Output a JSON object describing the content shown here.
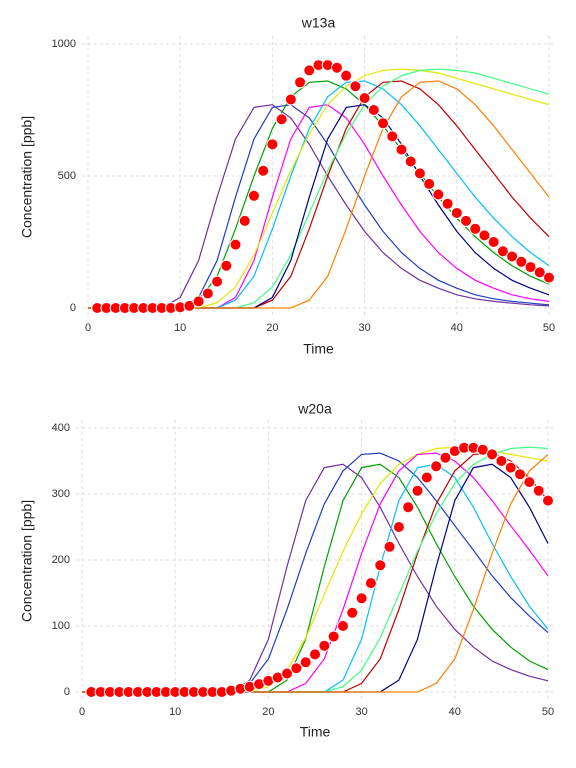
{
  "chart_data": [
    {
      "type": "line",
      "title": "w13a",
      "xlabel": "Time",
      "ylabel": "Concentration [ppb]",
      "xlim": [
        0,
        50
      ],
      "ylim": [
        0,
        1000
      ],
      "xticks": [
        0,
        10,
        20,
        30,
        40,
        50
      ],
      "yticks": [
        0,
        500,
        1000
      ],
      "grid": true,
      "x": [
        0,
        2,
        4,
        6,
        8,
        10,
        12,
        14,
        16,
        18,
        20,
        22,
        24,
        26,
        28,
        30,
        32,
        34,
        36,
        38,
        40,
        42,
        44,
        46,
        48,
        50
      ],
      "series": [
        {
          "color": "#7030a0",
          "values": [
            0,
            0,
            0,
            0,
            0,
            40,
            180,
            420,
            640,
            760,
            770,
            720,
            620,
            500,
            390,
            290,
            210,
            150,
            105,
            75,
            50,
            35,
            25,
            18,
            12,
            8
          ]
        },
        {
          "color": "#1f3fbf",
          "values": [
            0,
            0,
            0,
            0,
            0,
            0,
            40,
            180,
            420,
            640,
            760,
            770,
            720,
            620,
            500,
            390,
            290,
            210,
            150,
            105,
            75,
            50,
            35,
            25,
            18,
            12
          ]
        },
        {
          "color": "#00a000",
          "values": [
            0,
            0,
            0,
            0,
            0,
            0,
            30,
            120,
            300,
            500,
            680,
            800,
            855,
            860,
            830,
            770,
            690,
            600,
            510,
            420,
            340,
            270,
            210,
            160,
            120,
            90
          ]
        },
        {
          "color": "#ff00ff",
          "values": [
            0,
            0,
            0,
            0,
            0,
            0,
            0,
            0,
            40,
            180,
            420,
            640,
            760,
            770,
            720,
            620,
            500,
            390,
            290,
            210,
            150,
            105,
            75,
            50,
            35,
            25
          ]
        },
        {
          "color": "#00c0ff",
          "values": [
            0,
            0,
            0,
            0,
            0,
            0,
            0,
            0,
            30,
            120,
            300,
            500,
            680,
            800,
            855,
            860,
            830,
            770,
            690,
            600,
            510,
            420,
            340,
            270,
            210,
            160
          ]
        },
        {
          "color": "#e6e600",
          "values": [
            0,
            0,
            0,
            0,
            0,
            0,
            0,
            20,
            80,
            200,
            360,
            520,
            660,
            770,
            840,
            880,
            900,
            905,
            900,
            890,
            870,
            850,
            830,
            810,
            790,
            770
          ]
        },
        {
          "color": "#c00000",
          "values": [
            0,
            0,
            0,
            0,
            0,
            0,
            0,
            0,
            0,
            0,
            30,
            120,
            300,
            500,
            680,
            800,
            855,
            860,
            830,
            770,
            690,
            600,
            510,
            420,
            340,
            270
          ]
        },
        {
          "color": "#40ff80",
          "values": [
            0,
            0,
            0,
            0,
            0,
            0,
            0,
            0,
            0,
            20,
            80,
            200,
            360,
            520,
            660,
            770,
            840,
            880,
            900,
            905,
            900,
            890,
            870,
            850,
            830,
            810
          ]
        },
        {
          "color": "#000080",
          "values": [
            0,
            0,
            0,
            0,
            0,
            0,
            0,
            0,
            0,
            0,
            40,
            180,
            420,
            640,
            760,
            770,
            720,
            620,
            500,
            390,
            290,
            210,
            150,
            105,
            75,
            50
          ]
        },
        {
          "color": "#ff8000",
          "values": [
            0,
            0,
            0,
            0,
            0,
            0,
            0,
            0,
            0,
            0,
            0,
            0,
            30,
            120,
            300,
            500,
            680,
            800,
            855,
            860,
            830,
            770,
            690,
            600,
            510,
            420
          ]
        }
      ],
      "points": {
        "color": "#ff0000",
        "x": [
          1,
          2,
          3,
          4,
          5,
          6,
          7,
          8,
          9,
          10,
          11,
          12,
          13,
          14,
          15,
          16,
          17,
          18,
          19,
          20,
          21,
          22,
          23,
          24,
          25,
          26,
          27,
          28,
          29,
          30,
          31,
          32,
          33,
          34,
          35,
          36,
          37,
          38,
          39,
          40,
          41,
          42,
          43,
          44,
          45,
          46,
          47,
          48,
          49,
          50
        ],
        "values": [
          0,
          0,
          0,
          0,
          0,
          0,
          0,
          0,
          0,
          3,
          8,
          25,
          55,
          100,
          160,
          240,
          330,
          425,
          520,
          620,
          715,
          790,
          855,
          900,
          920,
          920,
          910,
          880,
          840,
          795,
          750,
          700,
          650,
          600,
          555,
          510,
          470,
          430,
          395,
          360,
          330,
          300,
          275,
          250,
          215,
          195,
          175,
          155,
          135,
          115
        ]
      }
    },
    {
      "type": "line",
      "title": "w20a",
      "xlabel": "Time",
      "ylabel": "Concentration [ppb]",
      "xlim": [
        0,
        50
      ],
      "ylim": [
        0,
        400
      ],
      "xticks": [
        0,
        10,
        20,
        30,
        40,
        50
      ],
      "yticks": [
        0,
        100,
        200,
        300,
        400
      ],
      "grid": true,
      "x": [
        0,
        2,
        4,
        6,
        8,
        10,
        12,
        14,
        16,
        18,
        20,
        22,
        24,
        26,
        28,
        30,
        32,
        34,
        36,
        38,
        40,
        42,
        44,
        46,
        48,
        50
      ],
      "series": [
        {
          "color": "#7030a0",
          "values": [
            0,
            0,
            0,
            0,
            0,
            0,
            0,
            0,
            0,
            18,
            80,
            190,
            290,
            340,
            345,
            325,
            280,
            225,
            175,
            130,
            95,
            68,
            47,
            34,
            24,
            17
          ]
        },
        {
          "color": "#1f3fbf",
          "values": [
            0,
            0,
            0,
            0,
            0,
            0,
            0,
            0,
            0,
            13,
            50,
            125,
            210,
            285,
            335,
            360,
            362,
            350,
            325,
            290,
            252,
            215,
            176,
            143,
            115,
            90
          ]
        },
        {
          "color": "#00a000",
          "values": [
            0,
            0,
            0,
            0,
            0,
            0,
            0,
            0,
            0,
            0,
            0,
            18,
            80,
            190,
            290,
            340,
            345,
            325,
            280,
            225,
            175,
            130,
            95,
            68,
            47,
            34
          ]
        },
        {
          "color": "#e6e600",
          "values": [
            0,
            0,
            0,
            0,
            0,
            0,
            0,
            0,
            0,
            0,
            8,
            33,
            82,
            148,
            213,
            270,
            316,
            345,
            360,
            369,
            371,
            369,
            365,
            360,
            355,
            350
          ]
        },
        {
          "color": "#ff00ff",
          "values": [
            0,
            0,
            0,
            0,
            0,
            0,
            0,
            0,
            0,
            0,
            0,
            0,
            13,
            50,
            125,
            210,
            285,
            335,
            360,
            362,
            350,
            325,
            290,
            252,
            215,
            176
          ]
        },
        {
          "color": "#00c0ff",
          "values": [
            0,
            0,
            0,
            0,
            0,
            0,
            0,
            0,
            0,
            0,
            0,
            0,
            0,
            0,
            18,
            80,
            190,
            290,
            340,
            345,
            325,
            280,
            225,
            175,
            130,
            95
          ]
        },
        {
          "color": "#c00000",
          "values": [
            0,
            0,
            0,
            0,
            0,
            0,
            0,
            0,
            0,
            0,
            0,
            0,
            0,
            0,
            0,
            13,
            50,
            125,
            210,
            285,
            335,
            360,
            362,
            350,
            325,
            290
          ]
        },
        {
          "color": "#40ff80",
          "values": [
            0,
            0,
            0,
            0,
            0,
            0,
            0,
            0,
            0,
            0,
            0,
            0,
            0,
            0,
            8,
            33,
            82,
            148,
            213,
            270,
            316,
            345,
            360,
            369,
            371,
            369
          ]
        },
        {
          "color": "#000080",
          "values": [
            0,
            0,
            0,
            0,
            0,
            0,
            0,
            0,
            0,
            0,
            0,
            0,
            0,
            0,
            0,
            0,
            0,
            18,
            80,
            190,
            290,
            340,
            345,
            325,
            280,
            225
          ]
        },
        {
          "color": "#ff8000",
          "values": [
            0,
            0,
            0,
            0,
            0,
            0,
            0,
            0,
            0,
            0,
            0,
            0,
            0,
            0,
            0,
            0,
            0,
            0,
            0,
            13,
            50,
            125,
            210,
            285,
            335,
            360
          ]
        }
      ],
      "points": {
        "color": "#ff0000",
        "x": [
          1,
          2,
          3,
          4,
          5,
          6,
          7,
          8,
          9,
          10,
          11,
          12,
          13,
          14,
          15,
          16,
          17,
          18,
          19,
          20,
          21,
          22,
          23,
          24,
          25,
          26,
          27,
          28,
          29,
          30,
          31,
          32,
          33,
          34,
          35,
          36,
          37,
          38,
          39,
          40,
          41,
          42,
          43,
          44,
          45,
          46,
          47,
          48,
          49,
          50
        ],
        "values": [
          0,
          0,
          0,
          0,
          0,
          0,
          0,
          0,
          0,
          0,
          0,
          0,
          0,
          0,
          0,
          2,
          5,
          8,
          12,
          17,
          22,
          28,
          36,
          45,
          57,
          70,
          84,
          100,
          120,
          142,
          165,
          192,
          220,
          250,
          280,
          305,
          325,
          342,
          355,
          365,
          370,
          370,
          367,
          360,
          350,
          340,
          330,
          318,
          305,
          290
        ]
      }
    }
  ]
}
